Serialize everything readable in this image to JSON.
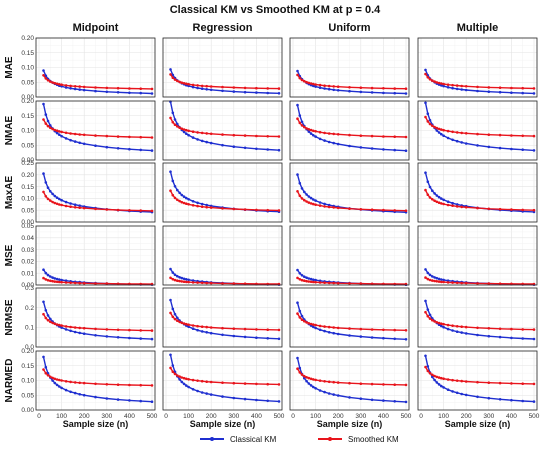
{
  "chart_data": {
    "type": "line",
    "title": "Classical KM vs Smoothed KM at p = 0.4",
    "xlabel": "Sample size (n)",
    "x": [
      20,
      30,
      40,
      50,
      60,
      70,
      80,
      90,
      100,
      120,
      140,
      160,
      180,
      200,
      250,
      300,
      350,
      400,
      450,
      500
    ],
    "xticks": [
      0,
      100,
      200,
      300,
      400,
      500
    ],
    "xlim": [
      0,
      500
    ],
    "columns": [
      "Midpoint",
      "Regression",
      "Uniform",
      "Multiple"
    ],
    "rows": [
      {
        "label": "MAE",
        "ylim": [
          0,
          0.2
        ],
        "yticks": [
          "0.00",
          "0.05",
          "0.10",
          "0.15",
          "0.20"
        ],
        "yvals": [
          0,
          0.05,
          0.1,
          0.15,
          0.2
        ]
      },
      {
        "label": "NMAE",
        "ylim": [
          0,
          0.2
        ],
        "yticks": [
          "0.00",
          "0.05",
          "0.10",
          "0.15",
          "0.20"
        ],
        "yvals": [
          0,
          0.05,
          0.1,
          0.15,
          0.2
        ]
      },
      {
        "label": "MaxAE",
        "ylim": [
          0,
          0.25
        ],
        "yticks": [
          "0.00",
          "0.05",
          "0.10",
          "0.15",
          "0.20",
          "0.25"
        ],
        "yvals": [
          0,
          0.05,
          0.1,
          0.15,
          0.2,
          0.25
        ]
      },
      {
        "label": "MSE",
        "ylim": [
          0,
          0.05
        ],
        "yticks": [
          "0.00",
          "0.01",
          "0.02",
          "0.03",
          "0.04",
          "0.05"
        ],
        "yvals": [
          0,
          0.01,
          0.02,
          0.03,
          0.04,
          0.05
        ]
      },
      {
        "label": "NRMSE",
        "ylim": [
          0,
          0.3
        ],
        "yticks": [
          "0.0",
          "0.1",
          "0.2",
          "0.3"
        ],
        "yvals": [
          0,
          0.1,
          0.2,
          0.3
        ]
      },
      {
        "label": "NARMED",
        "ylim": [
          0,
          0.2
        ],
        "yticks": [
          "0.00",
          "0.05",
          "0.10",
          "0.15",
          "0.20"
        ],
        "yvals": [
          0,
          0.05,
          0.1,
          0.15,
          0.2
        ]
      }
    ],
    "series": [
      {
        "name": "Classical KM",
        "color": "#1f2fd0",
        "rows": [
          {
            "start": 0.09,
            "end": 0.012
          },
          {
            "start": 0.19,
            "end": 0.032
          },
          {
            "start": 0.205,
            "end": 0.042
          },
          {
            "start": 0.013,
            "end": 0.0003
          },
          {
            "start": 0.23,
            "end": 0.04
          },
          {
            "start": 0.18,
            "end": 0.028
          }
        ]
      },
      {
        "name": "Smoothed KM",
        "color": "#e8141c",
        "rows": [
          {
            "start": 0.075,
            "end": 0.028
          },
          {
            "start": 0.14,
            "end": 0.078
          },
          {
            "start": 0.13,
            "end": 0.048
          },
          {
            "start": 0.006,
            "end": 0.0008
          },
          {
            "start": 0.17,
            "end": 0.085
          },
          {
            "start": 0.14,
            "end": 0.085
          }
        ]
      }
    ],
    "grid": true,
    "legend_position": "bottom"
  }
}
